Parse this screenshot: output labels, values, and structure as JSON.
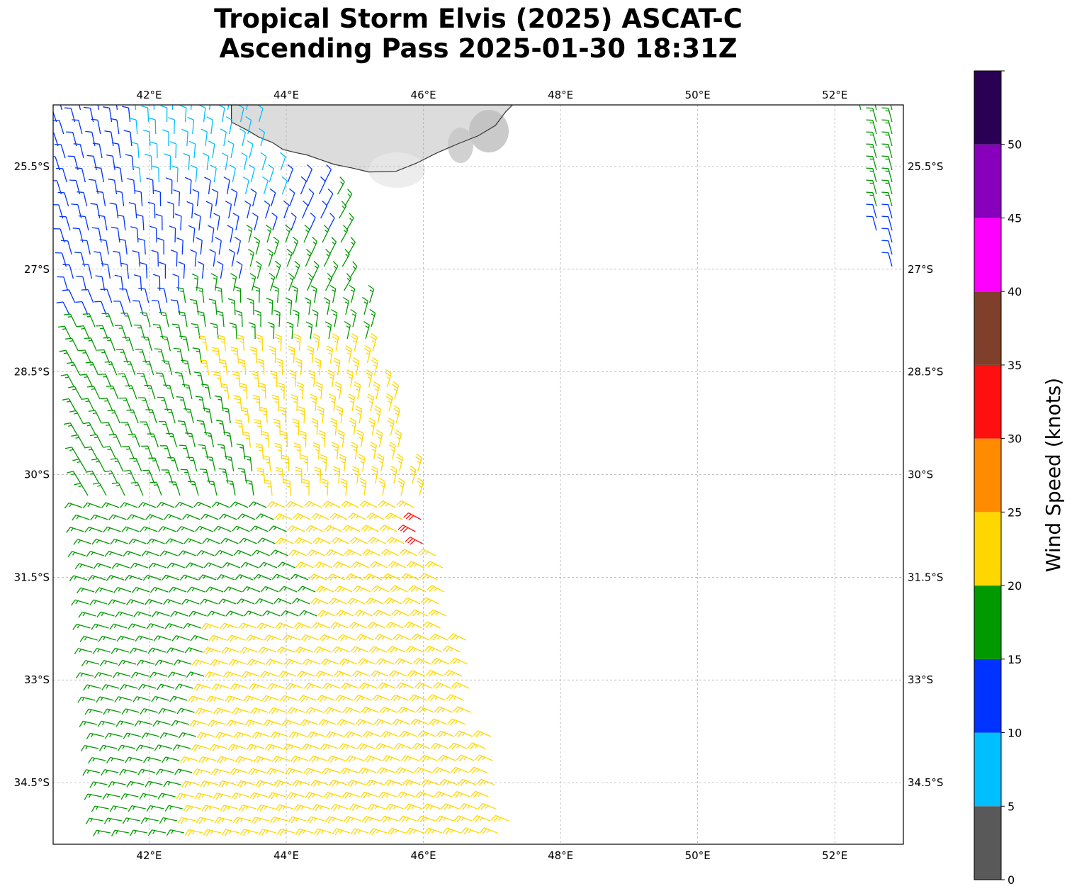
{
  "title": {
    "line1": "Tropical Storm Elvis (2025) ASCAT-C",
    "line2": "Ascending Pass 2025-01-30 18:31Z"
  },
  "map": {
    "lon_range": [
      40.6,
      53.0
    ],
    "lat_range": [
      -35.4,
      -24.6
    ],
    "lon_ticks": [
      42,
      44,
      46,
      48,
      50,
      52
    ],
    "lon_tick_labels": [
      "42°E",
      "44°E",
      "46°E",
      "48°E",
      "50°E",
      "52°E"
    ],
    "lat_ticks": [
      -25.5,
      -27,
      -28.5,
      -30,
      -31.5,
      -33,
      -34.5
    ],
    "lat_tick_labels": [
      "25.5°S",
      "27°S",
      "28.5°S",
      "30°S",
      "31.5°S",
      "33°S",
      "34.5°S"
    ],
    "gridlines": true,
    "land": "Madagascar (southern tip)",
    "land_color": "#dcdcdc",
    "coast_color": "#333333"
  },
  "colorbar": {
    "label": "Wind Speed (knots)",
    "ticks": [
      0,
      5,
      10,
      15,
      20,
      25,
      30,
      35,
      40,
      45,
      50
    ],
    "tick_labels": [
      "0",
      "5",
      "10",
      "15",
      "20",
      "25",
      "30",
      "35",
      "40",
      "45",
      "50"
    ],
    "max": 55,
    "bins": [
      {
        "min": 0,
        "max": 5,
        "color": "#595959"
      },
      {
        "min": 5,
        "max": 10,
        "color": "#00bfff"
      },
      {
        "min": 10,
        "max": 15,
        "color": "#0033ff"
      },
      {
        "min": 15,
        "max": 20,
        "color": "#009900"
      },
      {
        "min": 20,
        "max": 25,
        "color": "#ffd700"
      },
      {
        "min": 25,
        "max": 30,
        "color": "#ff8c00"
      },
      {
        "min": 30,
        "max": 35,
        "color": "#ff1010"
      },
      {
        "min": 35,
        "max": 40,
        "color": "#7f3f2a"
      },
      {
        "min": 40,
        "max": 45,
        "color": "#ff00ff"
      },
      {
        "min": 45,
        "max": 50,
        "color": "#8800bb"
      },
      {
        "min": 50,
        "max": 55,
        "color": "#2a0055"
      }
    ]
  },
  "chart_data": {
    "type": "scatter",
    "variable": "wind speed (knots)",
    "xlabel": "",
    "ylabel": "",
    "xlim": [
      40.6,
      53.0
    ],
    "ylim": [
      -35.4,
      -24.6
    ],
    "wind_speed_by_region": [
      {
        "region": "northwest",
        "lon": 41.5,
        "lat": -25.5,
        "speed": 12
      },
      {
        "region": "north-central",
        "lon": 42.5,
        "lat": -25.0,
        "speed": 8
      },
      {
        "region": "central-north",
        "lon": 44.0,
        "lat": -27.0,
        "speed": 17
      },
      {
        "region": "west",
        "lon": 41.5,
        "lat": -30.0,
        "speed": 17
      },
      {
        "region": "central",
        "lon": 44.5,
        "lat": -30.0,
        "speed": 23
      },
      {
        "region": "east-central",
        "lon": 45.5,
        "lat": -30.0,
        "speed": 27
      },
      {
        "region": "east-core",
        "lon": 46.0,
        "lat": -30.3,
        "speed": 32
      },
      {
        "region": "south",
        "lon": 44.5,
        "lat": -33.5,
        "speed": 23
      },
      {
        "region": "southwest",
        "lon": 41.8,
        "lat": -34.0,
        "speed": 17
      },
      {
        "region": "northeast-edge",
        "lon": 52.7,
        "lat": -25.5,
        "speed": 16
      }
    ]
  }
}
